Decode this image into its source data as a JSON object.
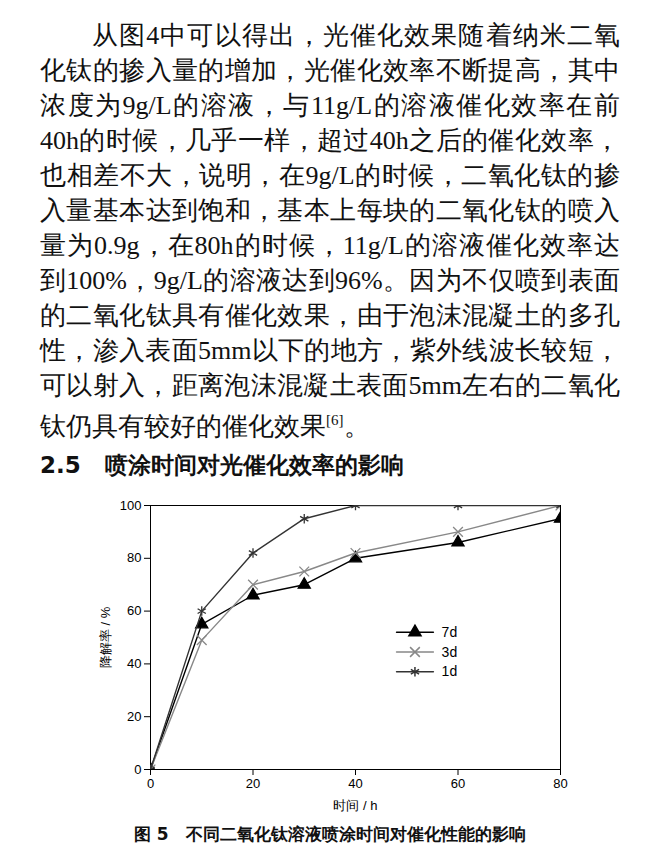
{
  "paragraph": {
    "text": "从图4中可以得出，光催化效果随着纳米二氧化钛的掺入量的增加，光催化效率不断提高，其中浓度为9g/L的溶液，与11g/L的溶液催化效率在前40h的时候，几乎一样，超过40h之后的催化效率，也相差不大，说明，在9g/L的时候，二氧化钛的掺入量基本达到饱和，基本上每块的二氧化钛的喷入量为0.9g，在80h的时候，11g/L的溶液催化效率达到100%，9g/L的溶液达到96%。因为不仅喷到表面的二氧化钛具有催化效果，由于泡沫混凝土的多孔性，渗入表面5mm以下的地方，紫外线波长较短，可以射入，距离泡沫混凝土表面5mm左右的二氧化钛仍具有较好的催化效果",
    "citation": "[6]",
    "end": "。"
  },
  "heading": "2.5   喷涂时间对光催化效率的影响",
  "chart_data": {
    "type": "line",
    "title": "图 5   不同二氧化钛溶液喷涂时间对催化性能的影响",
    "x_label": "时间 / h",
    "y_label": "降解率 / %",
    "x": [
      0,
      10,
      20,
      30,
      40,
      60,
      80
    ],
    "series": [
      {
        "name": "7d",
        "color": "#000000",
        "marker": "triangle",
        "values": [
          0,
          55,
          66,
          70,
          80,
          86,
          95
        ]
      },
      {
        "name": "3d",
        "color": "#888888",
        "marker": "x",
        "values": [
          0,
          49,
          70,
          75,
          82,
          90,
          100
        ]
      },
      {
        "name": "1d",
        "color": "#333333",
        "marker": "asterisk",
        "values": [
          0,
          60,
          82,
          95,
          100,
          100,
          100
        ]
      }
    ],
    "xlim": [
      0,
      80
    ],
    "xticks": [
      0,
      20,
      40,
      60,
      80
    ],
    "ylim": [
      0,
      100
    ],
    "yticks": [
      0,
      20,
      40,
      60,
      80,
      100
    ],
    "grid": false,
    "legend": "right"
  }
}
